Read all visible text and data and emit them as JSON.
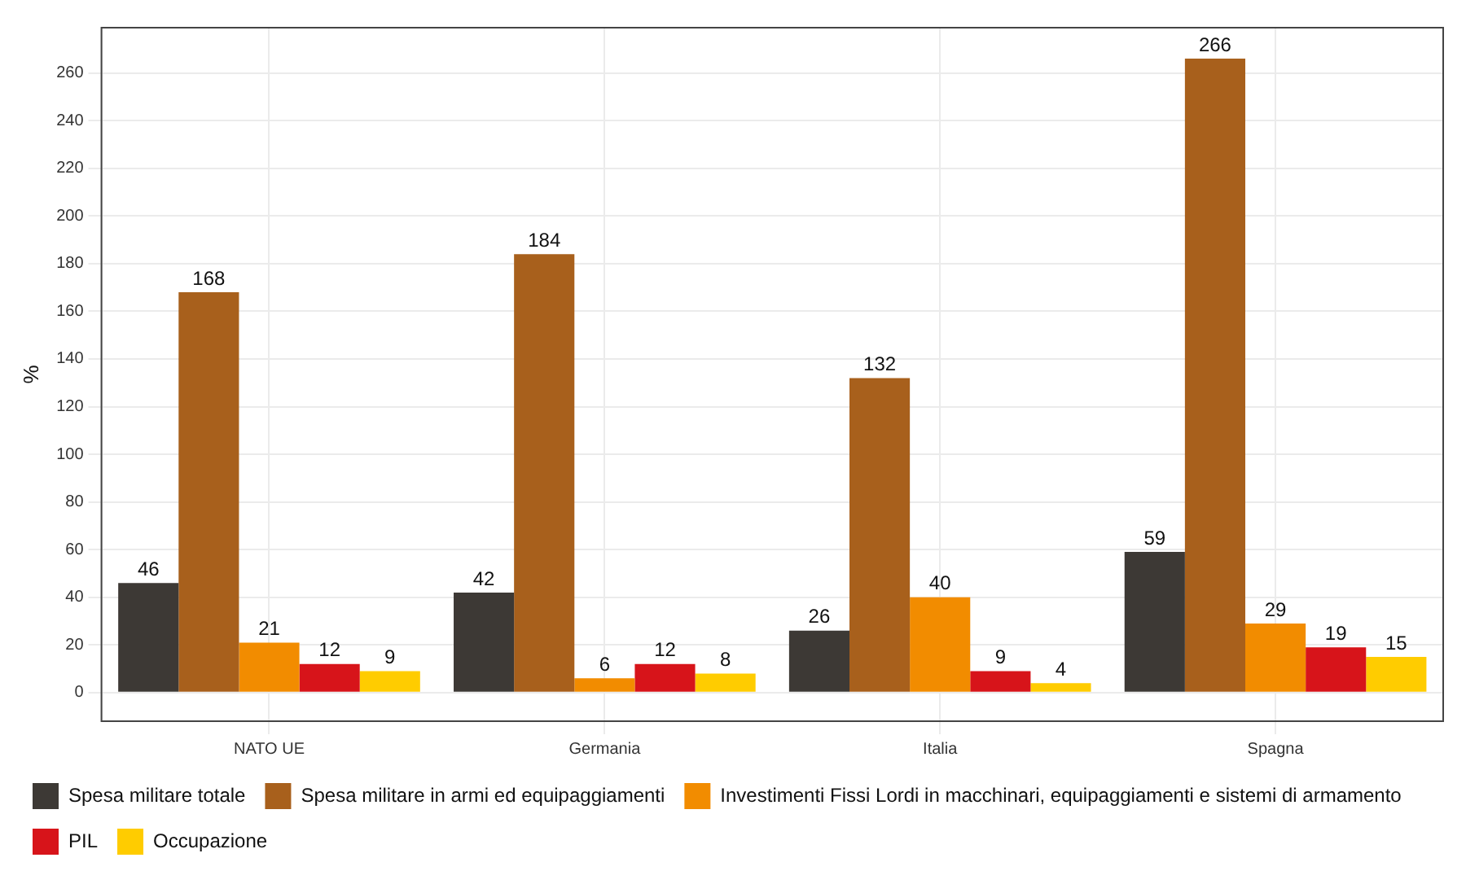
{
  "chart_data": {
    "type": "bar",
    "ylabel": "%",
    "categories": [
      "NATO UE",
      "Germania",
      "Italia",
      "Spagna"
    ],
    "series": [
      {
        "name": "Spesa militare totale",
        "color": "#3d3935",
        "values": [
          46,
          42,
          26,
          59
        ]
      },
      {
        "name": "Spesa militare in armi ed equipaggiamenti",
        "color": "#a8601c",
        "values": [
          168,
          184,
          132,
          266
        ]
      },
      {
        "name": "Investimenti Fissi Lordi in macchinari, equipaggiamenti e sistemi di armamento",
        "color": "#f28c00",
        "values": [
          21,
          6,
          40,
          29
        ]
      },
      {
        "name": "PIL",
        "color": "#d7141a",
        "values": [
          12,
          12,
          9,
          19
        ]
      },
      {
        "name": "Occupazione",
        "color": "#ffcc00",
        "values": [
          9,
          8,
          4,
          15
        ]
      }
    ],
    "ylim": [
      -12,
      279
    ],
    "yticks": [
      0,
      20,
      40,
      60,
      80,
      100,
      120,
      140,
      160,
      180,
      200,
      220,
      240,
      260
    ],
    "grid": true,
    "legend": "bottom",
    "data_labels": true
  }
}
